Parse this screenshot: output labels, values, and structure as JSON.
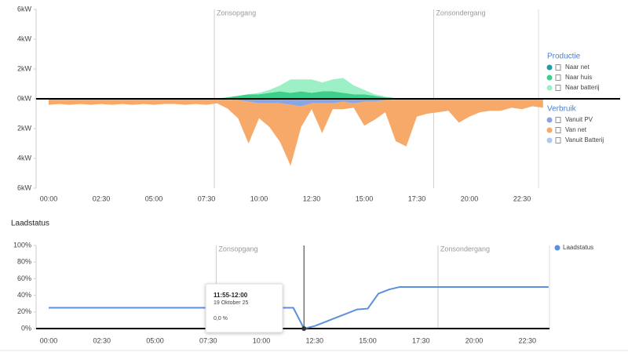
{
  "chart_data": [
    {
      "type": "area",
      "stacked": true,
      "categories": [
        "00:00",
        null,
        null,
        null,
        null,
        "02:30",
        null,
        null,
        null,
        null,
        "05:00",
        null,
        null,
        null,
        null,
        "07:30",
        null,
        null,
        null,
        null,
        "10:00",
        null,
        null,
        null,
        null,
        "12:30",
        null,
        null,
        null,
        null,
        "15:00",
        null,
        null,
        null,
        null,
        "17:30",
        null,
        null,
        null,
        null,
        "20:00",
        null,
        null,
        null,
        null,
        "22:30",
        null,
        null
      ],
      "ylim": [
        -6,
        6
      ],
      "yticks": [
        {
          "value": 6,
          "label": "6kW"
        },
        {
          "value": 4,
          "label": "4kW"
        },
        {
          "value": 2,
          "label": "2kW"
        },
        {
          "value": 0,
          "label": "0kW"
        },
        {
          "value": -2,
          "label": "2kW"
        },
        {
          "value": -4,
          "label": "4kW"
        },
        {
          "value": -6,
          "label": "6kW"
        }
      ],
      "annotations": [
        {
          "text": "Zonsopgang",
          "x": 15.75
        },
        {
          "text": "Zonsondergang",
          "x": 36.6
        }
      ],
      "groups": [
        {
          "name": "Productie",
          "series": [
            {
              "name": "Naar net",
              "color": "#1f9c9c",
              "values": [
                0,
                0,
                0,
                0,
                0,
                0,
                0,
                0,
                0,
                0,
                0,
                0,
                0,
                0,
                0,
                0,
                0,
                0,
                0,
                0,
                0,
                0,
                0,
                0,
                0,
                0,
                0,
                0,
                0,
                0,
                0,
                0,
                0,
                0,
                0,
                0,
                0,
                0,
                0,
                0,
                0,
                0,
                0,
                0,
                0,
                0,
                0,
                0
              ]
            },
            {
              "name": "Naar huis",
              "color": "#3dcf8c",
              "values": [
                0,
                0,
                0,
                0,
                0,
                0,
                0,
                0,
                0,
                0,
                0,
                0,
                0,
                0,
                0,
                0,
                0,
                0.1,
                0.2,
                0.3,
                0.3,
                0.4,
                0.5,
                0.4,
                0.5,
                0.4,
                0.5,
                0.5,
                0.4,
                0.3,
                0.3,
                0.2,
                0.1,
                0.05,
                0,
                0,
                0,
                0,
                0,
                0,
                0,
                0,
                0,
                0,
                0,
                0,
                0,
                0
              ]
            },
            {
              "name": "Naar batterij",
              "color": "#9df0c6",
              "values": [
                0,
                0,
                0,
                0,
                0,
                0,
                0,
                0,
                0,
                0,
                0,
                0,
                0,
                0,
                0,
                0,
                0,
                0,
                0,
                0,
                0.1,
                0.2,
                0.4,
                0.9,
                0.8,
                0.9,
                0.6,
                0.8,
                1.0,
                0.6,
                0.3,
                0.1,
                0.05,
                0,
                0,
                0,
                0,
                0,
                0,
                0,
                0,
                0,
                0,
                0,
                0,
                0,
                0,
                0
              ]
            }
          ]
        },
        {
          "name": "Verbruik",
          "series": [
            {
              "name": "Vanuit PV",
              "color": "#8aa6e2",
              "values": [
                0,
                0,
                0,
                0,
                0,
                0,
                0,
                0,
                0,
                0,
                0,
                0,
                0,
                0,
                0,
                0,
                0,
                -0.05,
                -0.1,
                -0.2,
                -0.3,
                -0.3,
                -0.3,
                -0.4,
                -0.5,
                -0.3,
                -0.3,
                -0.3,
                -0.2,
                -0.3,
                -0.2,
                -0.2,
                -0.1,
                -0.05,
                0,
                0,
                0,
                0,
                0,
                0,
                0,
                0,
                0,
                0,
                0,
                0,
                0,
                0
              ]
            },
            {
              "name": "Van net",
              "color": "#f7a96a",
              "values": [
                -0.4,
                -0.35,
                -0.4,
                -0.35,
                -0.4,
                -0.35,
                -0.4,
                -0.35,
                -0.4,
                -0.35,
                -0.4,
                -0.35,
                -0.35,
                -0.4,
                -0.35,
                -0.4,
                -0.3,
                -0.6,
                -1.2,
                -2.8,
                -1.0,
                -1.6,
                -2.6,
                -4.1,
                -1.4,
                -0.4,
                -2.0,
                -0.4,
                -0.5,
                -0.3,
                -1.6,
                -1.2,
                -0.8,
                -2.8,
                -3.2,
                -1.2,
                -1.0,
                -0.9,
                -0.8,
                -1.6,
                -1.2,
                -0.9,
                -0.8,
                -0.8,
                -0.6,
                -0.7,
                -0.5,
                -0.6
              ]
            },
            {
              "name": "Vanuit Batterij",
              "color": "#a9c9f2",
              "values": [
                0,
                0,
                0,
                0,
                0,
                0,
                0,
                0,
                0,
                0,
                0,
                0,
                0,
                0,
                0,
                0,
                0,
                0,
                0,
                0,
                0,
                0,
                0,
                0,
                0,
                0,
                0,
                0,
                0,
                0,
                0,
                0,
                0,
                0,
                0,
                0,
                0,
                0,
                0,
                0,
                0,
                0,
                0,
                0,
                0,
                0,
                0,
                0
              ]
            }
          ]
        }
      ]
    },
    {
      "type": "line",
      "title": "Laadstatus",
      "categories": [
        "00:00",
        null,
        null,
        null,
        null,
        "02:30",
        null,
        null,
        null,
        null,
        "05:00",
        null,
        null,
        null,
        null,
        "07:30",
        null,
        null,
        null,
        null,
        "10:00",
        null,
        null,
        null,
        null,
        "12:30",
        null,
        null,
        null,
        null,
        "15:00",
        null,
        null,
        null,
        null,
        "17:30",
        null,
        null,
        null,
        null,
        "20:00",
        null,
        null,
        null,
        null,
        "22:30",
        null,
        null
      ],
      "ylim": [
        0,
        100
      ],
      "yticks": [
        {
          "value": 0,
          "label": "0%"
        },
        {
          "value": 20,
          "label": "20%"
        },
        {
          "value": 40,
          "label": "40%"
        },
        {
          "value": 60,
          "label": "60%"
        },
        {
          "value": 80,
          "label": "80%"
        },
        {
          "value": 100,
          "label": "100%"
        }
      ],
      "annotations": [
        {
          "text": "Zonsopgang",
          "x": 15.75
        },
        {
          "text": "Zonsondergang",
          "x": 36.6
        }
      ],
      "series": [
        {
          "name": "Laadstatus",
          "color": "#5b8fe0",
          "values": [
            25,
            25,
            25,
            25,
            25,
            25,
            25,
            25,
            25,
            25,
            25,
            25,
            25,
            25,
            25,
            25,
            25,
            25,
            25,
            25,
            25,
            25,
            25,
            25,
            0,
            3,
            8,
            13,
            18,
            23,
            24,
            42,
            47,
            50,
            50,
            50,
            50,
            50,
            50,
            50,
            50,
            50,
            50,
            50,
            50,
            50,
            50,
            50
          ]
        }
      ],
      "tooltip": {
        "title": "11:55-12:00",
        "date": "19 Oktober 25",
        "value": 0,
        "value_label": "0,0 %"
      }
    }
  ]
}
